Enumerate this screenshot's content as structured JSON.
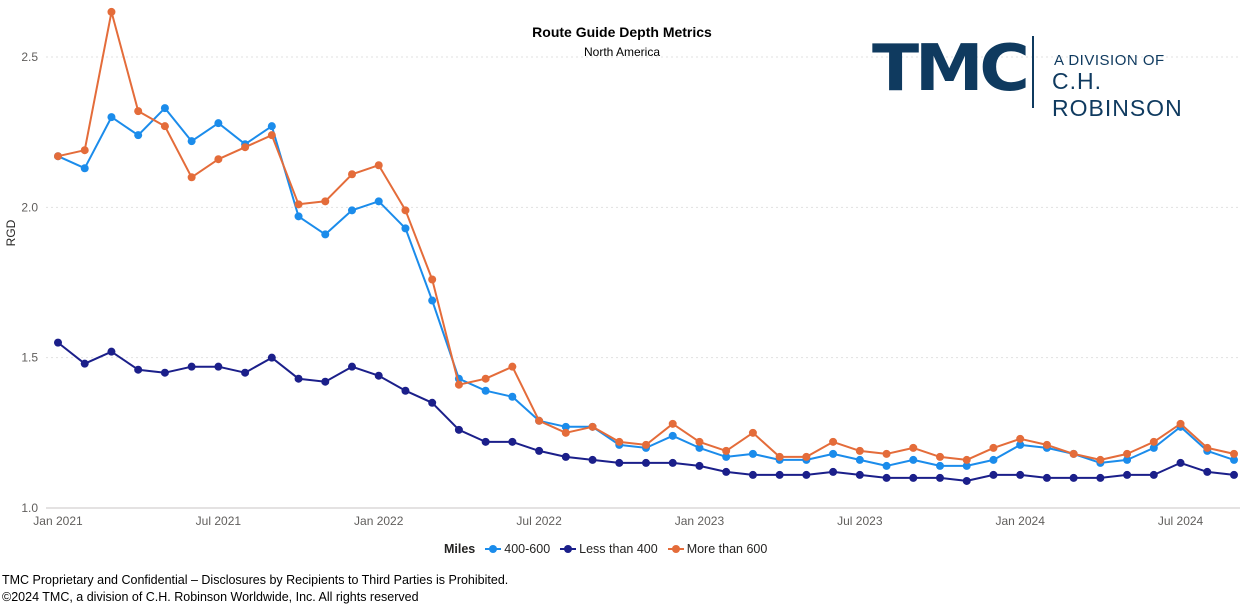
{
  "chart_data": {
    "type": "line",
    "title": "Route Guide Depth Metrics",
    "subtitle": "North America",
    "ylabel": "RGD",
    "xlabel": "",
    "ylim": [
      1.0,
      2.65
    ],
    "yticks": [
      "1.0",
      "1.5",
      "2.0",
      "2.5"
    ],
    "ytick_values": [
      1.0,
      1.5,
      2.0,
      2.5
    ],
    "xticks": [
      "Jan 2021",
      "Jul 2021",
      "Jan 2022",
      "Jul 2022",
      "Jan 2023",
      "Jul 2023",
      "Jan 2024",
      "Jul 2024"
    ],
    "xtick_index": [
      0,
      6,
      12,
      18,
      24,
      30,
      36,
      42
    ],
    "x": [
      "2021-01",
      "2021-02",
      "2021-03",
      "2021-04",
      "2021-05",
      "2021-06",
      "2021-07",
      "2021-08",
      "2021-09",
      "2021-10",
      "2021-11",
      "2021-12",
      "2022-01",
      "2022-02",
      "2022-03",
      "2022-04",
      "2022-05",
      "2022-06",
      "2022-07",
      "2022-08",
      "2022-09",
      "2022-10",
      "2022-11",
      "2022-12",
      "2023-01",
      "2023-02",
      "2023-03",
      "2023-04",
      "2023-05",
      "2023-06",
      "2023-07",
      "2023-08",
      "2023-09",
      "2023-10",
      "2023-11",
      "2023-12",
      "2024-01",
      "2024-02",
      "2024-03",
      "2024-04",
      "2024-05",
      "2024-06",
      "2024-07",
      "2024-08",
      "2024-09"
    ],
    "grid": "horizontal dashed",
    "legend": {
      "title": "Miles",
      "position": "bottom"
    },
    "series": [
      {
        "name": "400-600",
        "color": "#1b8ceb",
        "values": [
          2.17,
          2.13,
          2.3,
          2.24,
          2.33,
          2.22,
          2.28,
          2.21,
          2.27,
          1.97,
          1.91,
          1.99,
          2.02,
          1.93,
          1.69,
          1.43,
          1.39,
          1.37,
          1.29,
          1.27,
          1.27,
          1.21,
          1.2,
          1.24,
          1.2,
          1.17,
          1.18,
          1.16,
          1.16,
          1.18,
          1.16,
          1.14,
          1.16,
          1.14,
          1.14,
          1.16,
          1.21,
          1.2,
          1.18,
          1.15,
          1.16,
          1.2,
          1.27,
          1.19,
          1.16
        ]
      },
      {
        "name": "Less than 400",
        "color": "#1b1f8a",
        "values": [
          1.55,
          1.48,
          1.52,
          1.46,
          1.45,
          1.47,
          1.47,
          1.45,
          1.5,
          1.43,
          1.42,
          1.47,
          1.44,
          1.39,
          1.35,
          1.26,
          1.22,
          1.22,
          1.19,
          1.17,
          1.16,
          1.15,
          1.15,
          1.15,
          1.14,
          1.12,
          1.11,
          1.11,
          1.11,
          1.12,
          1.11,
          1.1,
          1.1,
          1.1,
          1.09,
          1.11,
          1.11,
          1.1,
          1.1,
          1.1,
          1.11,
          1.11,
          1.15,
          1.12,
          1.11
        ]
      },
      {
        "name": "More than 600",
        "color": "#e46c3a",
        "values": [
          2.17,
          2.19,
          2.65,
          2.32,
          2.27,
          2.1,
          2.16,
          2.2,
          2.24,
          2.01,
          2.02,
          2.11,
          2.14,
          1.99,
          1.76,
          1.41,
          1.43,
          1.47,
          1.29,
          1.25,
          1.27,
          1.22,
          1.21,
          1.28,
          1.22,
          1.19,
          1.25,
          1.17,
          1.17,
          1.22,
          1.19,
          1.18,
          1.2,
          1.17,
          1.16,
          1.2,
          1.23,
          1.21,
          1.18,
          1.16,
          1.18,
          1.22,
          1.28,
          1.2,
          1.18
        ]
      }
    ]
  },
  "logo": {
    "mark": "TMC",
    "line1": "A DIVISION OF",
    "line2": "C.H. ROBINSON"
  },
  "footer": {
    "line1": "TMC Proprietary and Confidential – Disclosures by Recipients to Third Parties is Prohibited.",
    "line2": "©2024 TMC, a division of C.H. Robinson Worldwide, Inc. All rights reserved"
  }
}
